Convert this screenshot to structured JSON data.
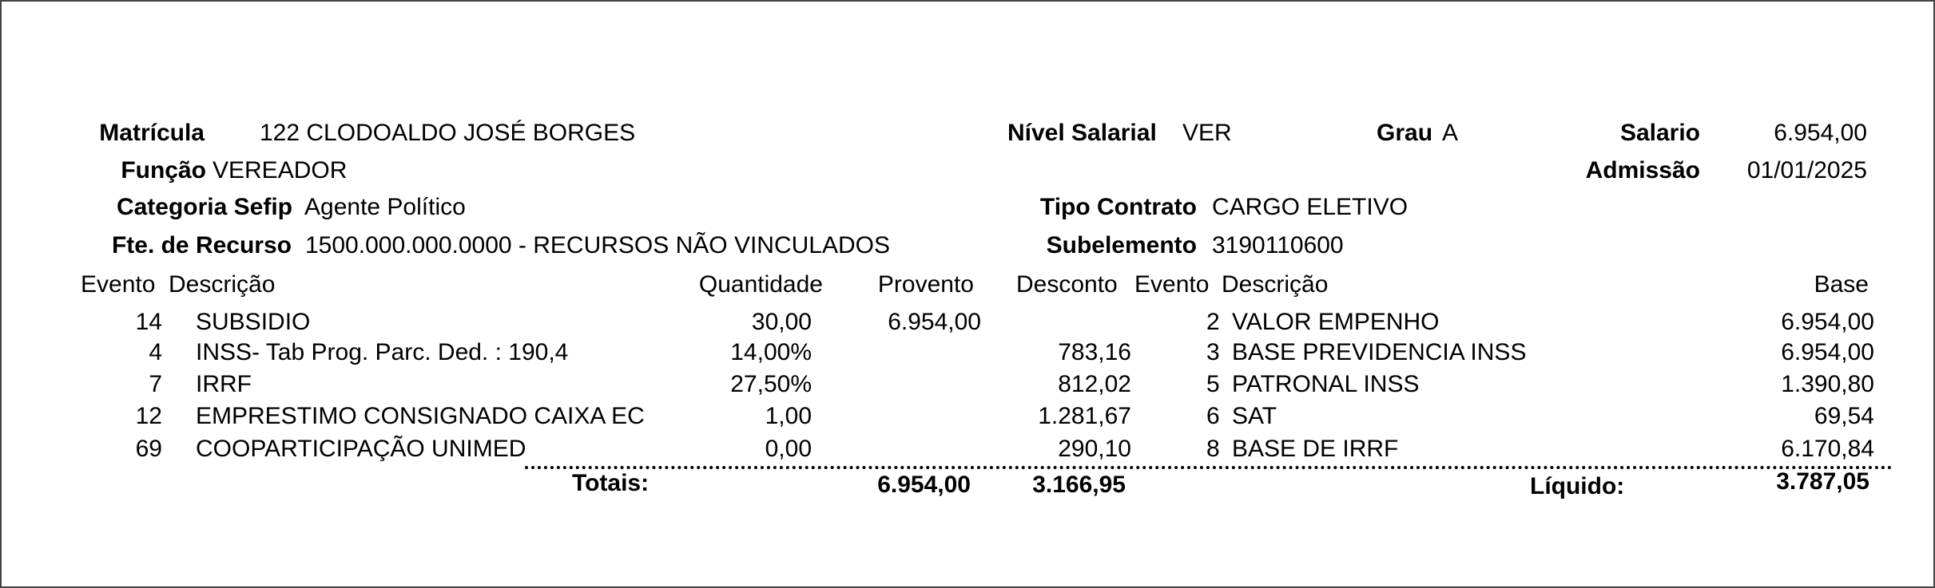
{
  "header": {
    "matricula": {
      "label": "Matrícula",
      "value": "122 CLODOALDO JOSÉ BORGES"
    },
    "funcao": {
      "label": "Função",
      "value": "VEREADOR"
    },
    "categoria_sefip": {
      "label": "Categoria Sefip",
      "value": "Agente Político"
    },
    "fonte_recurso": {
      "label": "Fte. de Recurso",
      "value": "1500.000.000.0000 - RECURSOS NÃO VINCULADOS"
    },
    "nivel_salarial": {
      "label": "Nível Salarial",
      "value": "VER"
    },
    "grau": {
      "label": "Grau",
      "value": "A"
    },
    "salario": {
      "label": "Salario",
      "value": "6.954,00"
    },
    "admissao": {
      "label": "Admissão",
      "value": "01/01/2025"
    },
    "tipo_contrato": {
      "label": "Tipo Contrato",
      "value": "CARGO ELETIVO"
    },
    "subelemento": {
      "label": "Subelemento",
      "value": "3190110600"
    }
  },
  "events_table": {
    "columns": {
      "evento": "Evento",
      "descricao": "Descrição",
      "quantidade": "Quantidade",
      "provento": "Provento",
      "desconto": "Desconto"
    },
    "rows": [
      {
        "evento": "14",
        "descricao": "SUBSIDIO",
        "quantidade": "30,00",
        "provento": "6.954,00",
        "desconto": ""
      },
      {
        "evento": "4",
        "descricao": "INSS- Tab Prog. Parc. Ded. : 190,4",
        "quantidade": "14,00%",
        "provento": "",
        "desconto": "783,16"
      },
      {
        "evento": "7",
        "descricao": "IRRF",
        "quantidade": "27,50%",
        "provento": "",
        "desconto": "812,02"
      },
      {
        "evento": "12",
        "descricao": "EMPRESTIMO CONSIGNADO CAIXA EC",
        "quantidade": "1,00",
        "provento": "",
        "desconto": "1.281,67"
      },
      {
        "evento": "69",
        "descricao": "COOPARTICIPAÇÃO UNIMED",
        "quantidade": "0,00",
        "provento": "",
        "desconto": "290,10"
      }
    ]
  },
  "base_table": {
    "columns": {
      "evento": "Evento",
      "descricao": "Descrição",
      "base": "Base"
    },
    "rows": [
      {
        "evento": "2",
        "descricao": "VALOR EMPENHO",
        "base": "6.954,00"
      },
      {
        "evento": "3",
        "descricao": "BASE PREVIDENCIA INSS",
        "base": "6.954,00"
      },
      {
        "evento": "5",
        "descricao": "PATRONAL INSS",
        "base": "1.390,80"
      },
      {
        "evento": "6",
        "descricao": "SAT",
        "base": "69,54"
      },
      {
        "evento": "8",
        "descricao": "BASE DE IRRF",
        "base": "6.170,84"
      }
    ]
  },
  "totals": {
    "label": "Totais:",
    "provento": "6.954,00",
    "desconto": "3.166,95",
    "liquido_label": "Líquido:",
    "liquido": "3.787,05"
  }
}
